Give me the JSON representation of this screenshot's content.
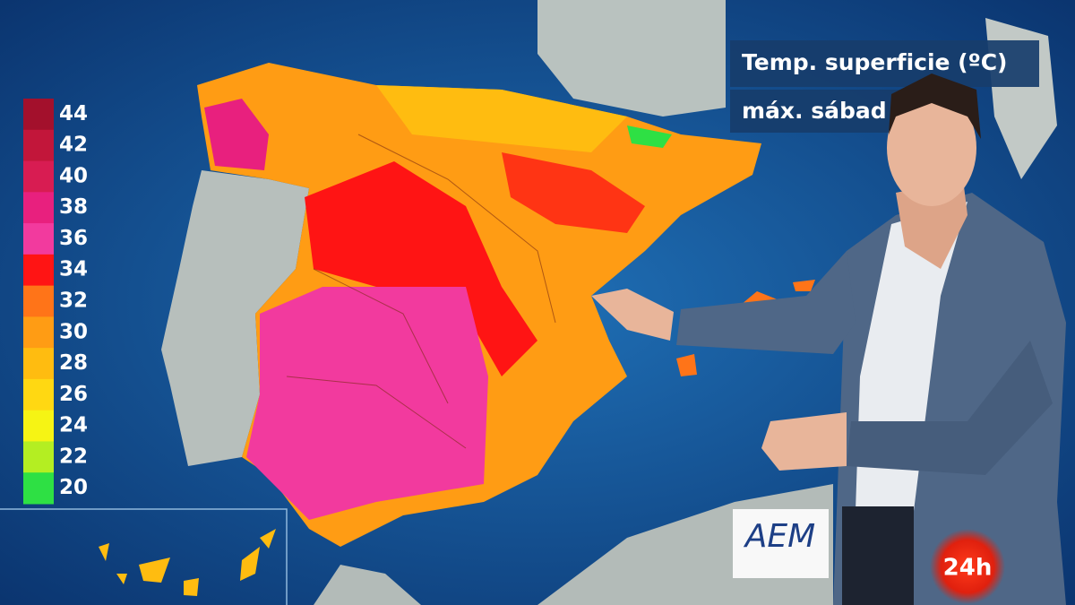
{
  "header": {
    "title": "Temp. superficie (ºC)",
    "subtitle": "máx. sábad"
  },
  "legend": {
    "items": [
      {
        "label": 44,
        "color": "#a3102c"
      },
      {
        "label": 42,
        "color": "#c2163a"
      },
      {
        "label": 40,
        "color": "#d81c52"
      },
      {
        "label": 38,
        "color": "#e8207e"
      },
      {
        "label": 36,
        "color": "#f23a9e"
      },
      {
        "label": 34,
        "color": "#ff1414"
      },
      {
        "label": 32,
        "color": "#ff7418"
      },
      {
        "label": 30,
        "color": "#ff9c14"
      },
      {
        "label": 28,
        "color": "#ffbc10"
      },
      {
        "label": 26,
        "color": "#ffd812"
      },
      {
        "label": 24,
        "color": "#f6f414"
      },
      {
        "label": 22,
        "color": "#b4ee22"
      },
      {
        "label": 20,
        "color": "#2ee044"
      }
    ]
  },
  "logos": {
    "agency": "AEM",
    "channel": "24h"
  }
}
